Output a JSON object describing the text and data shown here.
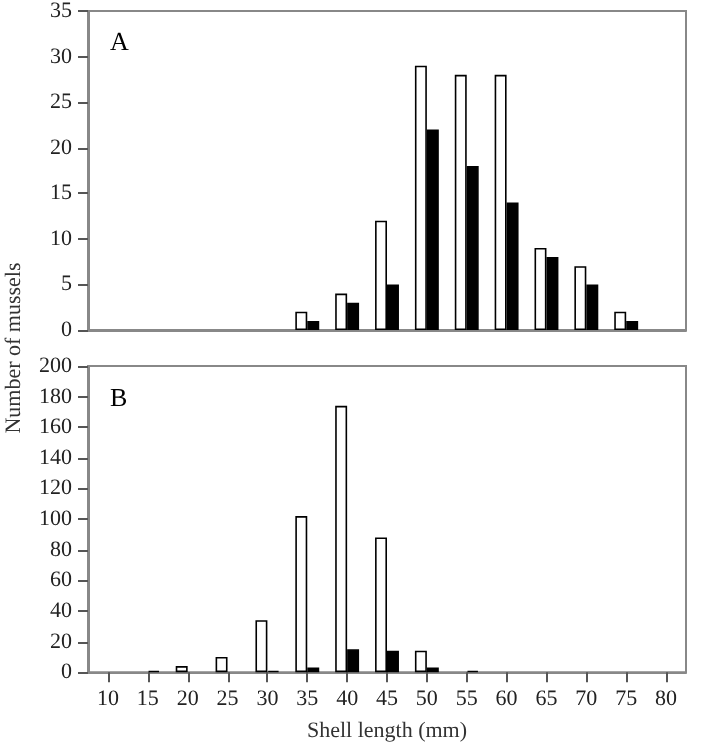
{
  "chart_data": [
    {
      "type": "bar",
      "title": "A",
      "ylabel": "Number of mussels",
      "categories": [
        "10",
        "15",
        "20",
        "25",
        "30",
        "35",
        "40",
        "45",
        "50",
        "55",
        "60",
        "65",
        "70",
        "75",
        "80"
      ],
      "series": [
        {
          "color": "#ffffff",
          "values": [
            null,
            null,
            null,
            null,
            null,
            2,
            4,
            12,
            29,
            28,
            28,
            9,
            7,
            2,
            null
          ]
        },
        {
          "color": "#000000",
          "values": [
            null,
            null,
            null,
            null,
            null,
            1,
            3,
            5,
            22,
            18,
            14,
            8,
            5,
            1,
            null
          ]
        }
      ],
      "ylim": [
        0,
        35
      ],
      "yticks": [
        0,
        5,
        10,
        15,
        20,
        25,
        30,
        35
      ],
      "tick_labels": "y",
      "grid": false
    },
    {
      "type": "bar",
      "title": "B",
      "xlabel": "Shell length (mm)",
      "categories": [
        "10",
        "15",
        "20",
        "25",
        "30",
        "35",
        "40",
        "45",
        "50",
        "55",
        "60",
        "65",
        "70",
        "75",
        "80"
      ],
      "series": [
        {
          "color": "#ffffff",
          "values": [
            null,
            null,
            4,
            10,
            34,
            102,
            174,
            88,
            14,
            null,
            null,
            null,
            null,
            null,
            null
          ]
        },
        {
          "color": "#000000",
          "values": [
            null,
            1,
            null,
            null,
            1,
            3,
            15,
            14,
            3,
            1,
            null,
            null,
            null,
            null,
            null
          ]
        }
      ],
      "ylim": [
        0,
        200
      ],
      "yticks": [
        0,
        20,
        40,
        60,
        80,
        100,
        120,
        140,
        160,
        180,
        200
      ],
      "grid": false
    }
  ]
}
